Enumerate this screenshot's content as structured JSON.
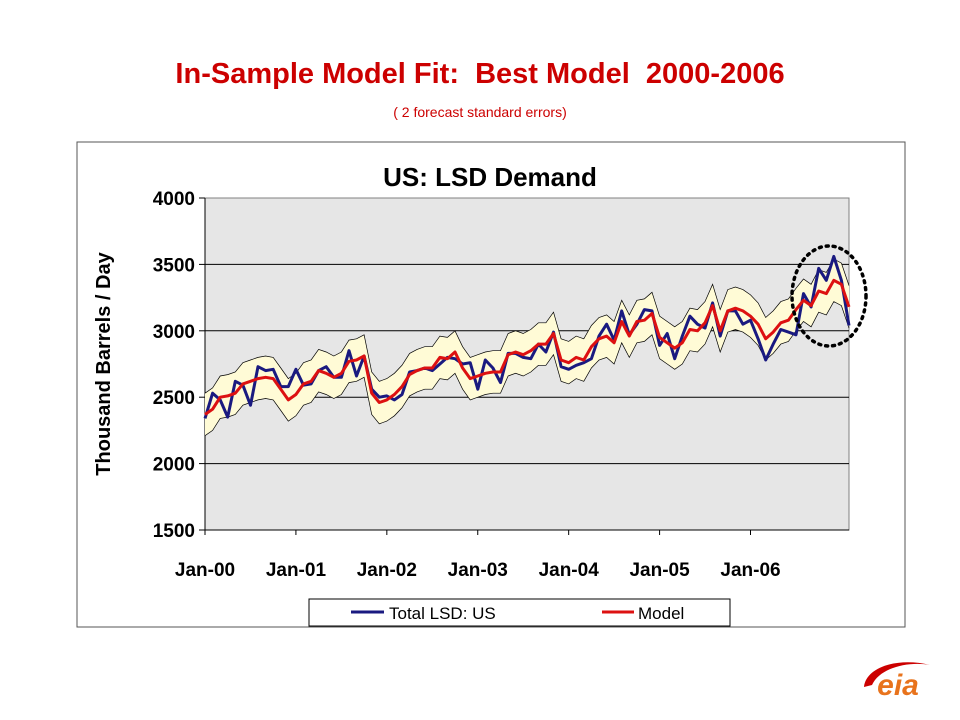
{
  "slide": {
    "title": "In-Sample Model Fit:  Best Model  2000-2006",
    "subtitle": "( 2 forecast standard errors)"
  },
  "logo": {
    "text": "eia",
    "color": "#e8731c",
    "accent": "#cc0000"
  },
  "chart_data": {
    "type": "line",
    "title": "US:  LSD Demand",
    "xlabel": "",
    "ylabel": "Thousand Barrels / Day",
    "ylim": [
      1500,
      4000
    ],
    "yticks": [
      1500,
      2000,
      2500,
      3000,
      3500,
      4000
    ],
    "x_start": "Jan-00",
    "x_tick_labels": [
      "Jan-00",
      "Jan-01",
      "Jan-02",
      "Jan-03",
      "Jan-04",
      "Jan-05",
      "Jan-06"
    ],
    "grid": "horizontal",
    "plot_background": "#e6e6e6",
    "band_color": "#fffbd6",
    "legend_position": "bottom",
    "series": [
      {
        "name": "Total LSD:  US",
        "color": "#1a1a80",
        "values": [
          2340,
          2530,
          2480,
          2350,
          2620,
          2590,
          2440,
          2730,
          2700,
          2710,
          2580,
          2580,
          2710,
          2590,
          2600,
          2700,
          2730,
          2650,
          2650,
          2850,
          2660,
          2810,
          2560,
          2500,
          2510,
          2480,
          2520,
          2690,
          2700,
          2720,
          2700,
          2750,
          2800,
          2790,
          2750,
          2760,
          2560,
          2780,
          2720,
          2610,
          2830,
          2830,
          2800,
          2790,
          2900,
          2840,
          2990,
          2730,
          2710,
          2740,
          2760,
          2790,
          2960,
          3050,
          2930,
          3150,
          2970,
          3050,
          3160,
          3150,
          2890,
          2980,
          2790,
          2960,
          3110,
          3050,
          3020,
          3210,
          2960,
          3150,
          3150,
          3050,
          3080,
          2940,
          2780,
          2900,
          3010,
          2990,
          2970,
          3280,
          3180,
          3470,
          3380,
          3560,
          3380,
          3040
        ]
      },
      {
        "name": "Model",
        "color": "#dd1111",
        "values": [
          2370,
          2410,
          2500,
          2510,
          2530,
          2600,
          2620,
          2640,
          2650,
          2640,
          2560,
          2480,
          2520,
          2600,
          2620,
          2700,
          2680,
          2650,
          2680,
          2770,
          2780,
          2810,
          2530,
          2460,
          2480,
          2520,
          2580,
          2670,
          2700,
          2720,
          2720,
          2800,
          2790,
          2840,
          2720,
          2640,
          2660,
          2680,
          2690,
          2690,
          2820,
          2840,
          2820,
          2850,
          2900,
          2900,
          2980,
          2780,
          2760,
          2800,
          2780,
          2880,
          2940,
          2960,
          2910,
          3070,
          2960,
          3070,
          3080,
          3130,
          2950,
          2910,
          2870,
          2910,
          3010,
          3000,
          3060,
          3190,
          3000,
          3150,
          3170,
          3150,
          3110,
          3050,
          2940,
          2990,
          3060,
          3080,
          3160,
          3230,
          3190,
          3300,
          3280,
          3380,
          3350,
          3180
        ]
      }
    ],
    "band_halfwidth": 160
  }
}
